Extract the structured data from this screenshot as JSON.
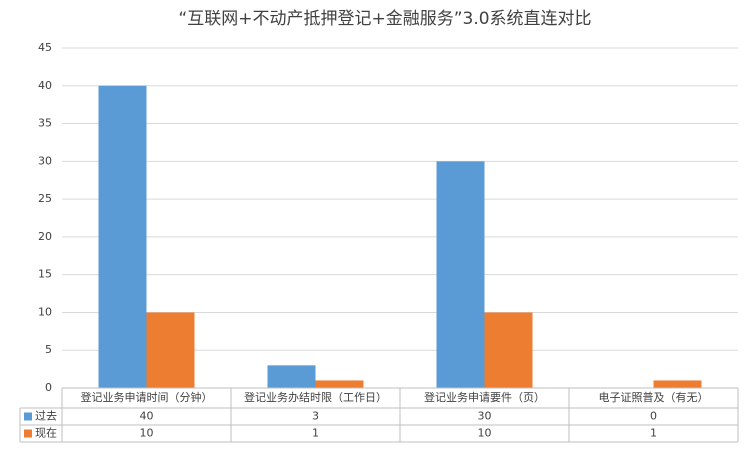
{
  "chart_data": {
    "type": "bar",
    "title": "“互联网+不动产抵押登记+金融服务”3.0系统直连对比",
    "categories": [
      "登记业务申请时间（分钟）",
      "登记业务办结时限（工作日）",
      "登记业务申请要件（页）",
      "电子证照普及（有无）"
    ],
    "series": [
      {
        "name": "过去",
        "color": "#5b9bd5",
        "values": [
          40,
          3,
          30,
          0
        ]
      },
      {
        "name": "现在",
        "color": "#ed7d31",
        "values": [
          10,
          1,
          10,
          1
        ]
      }
    ],
    "ylim": [
      0,
      45
    ],
    "yticks": [
      0,
      5,
      10,
      15,
      20,
      25,
      30,
      35,
      40,
      45
    ],
    "grid": true,
    "data_table": true
  }
}
